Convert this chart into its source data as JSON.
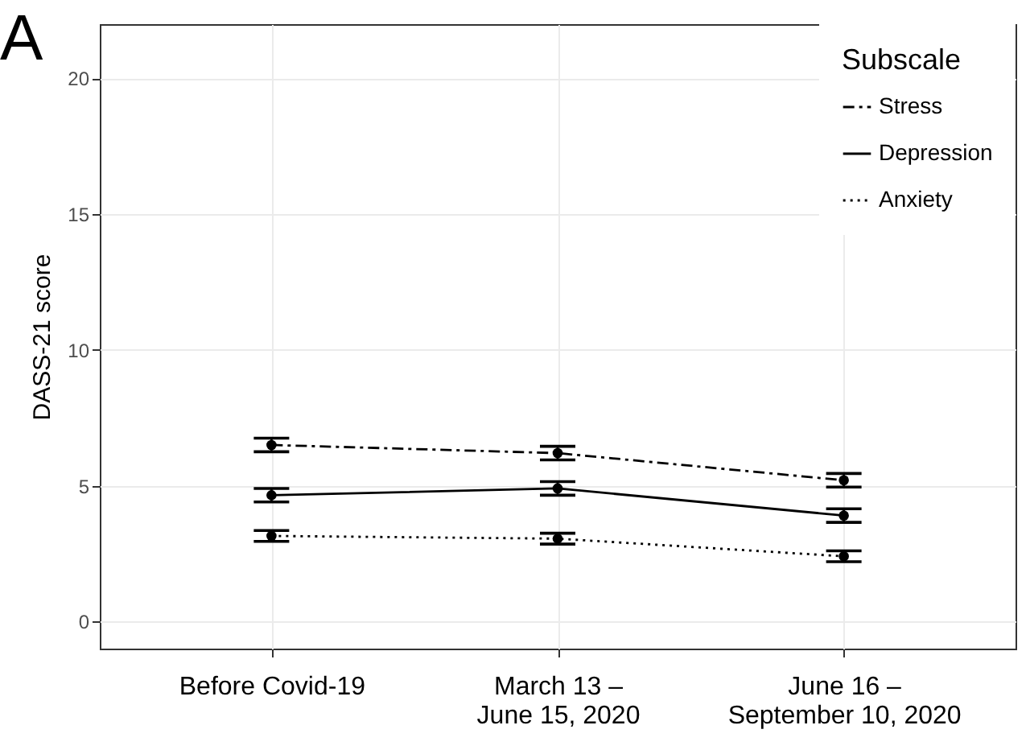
{
  "chart_data": {
    "type": "line",
    "title": "A",
    "ylabel": "DASS-21 score",
    "legend_title": "Subscale",
    "categories": [
      "Before Covid-19",
      "March 13 –\nJune 15, 2020",
      "June 16 –\nSeptember 10, 2020"
    ],
    "series": [
      {
        "name": "Stress",
        "color": "#000000",
        "line_style": "dashed",
        "values": [
          6.5,
          6.2,
          5.2
        ],
        "errors": [
          0.25,
          0.25,
          0.25
        ]
      },
      {
        "name": "Depression",
        "color": "#000000",
        "line_style": "solid",
        "values": [
          4.65,
          4.9,
          3.9
        ],
        "errors": [
          0.25,
          0.25,
          0.25
        ]
      },
      {
        "name": "Anxiety",
        "color": "#000000",
        "line_style": "dotted",
        "values": [
          3.15,
          3.05,
          2.4
        ],
        "errors": [
          0.2,
          0.2,
          0.2
        ]
      }
    ],
    "ylim": [
      -1,
      22
    ],
    "yticks": [
      0,
      5,
      10,
      15,
      20
    ],
    "grid": true,
    "legend": "top right",
    "marker": "circle"
  }
}
